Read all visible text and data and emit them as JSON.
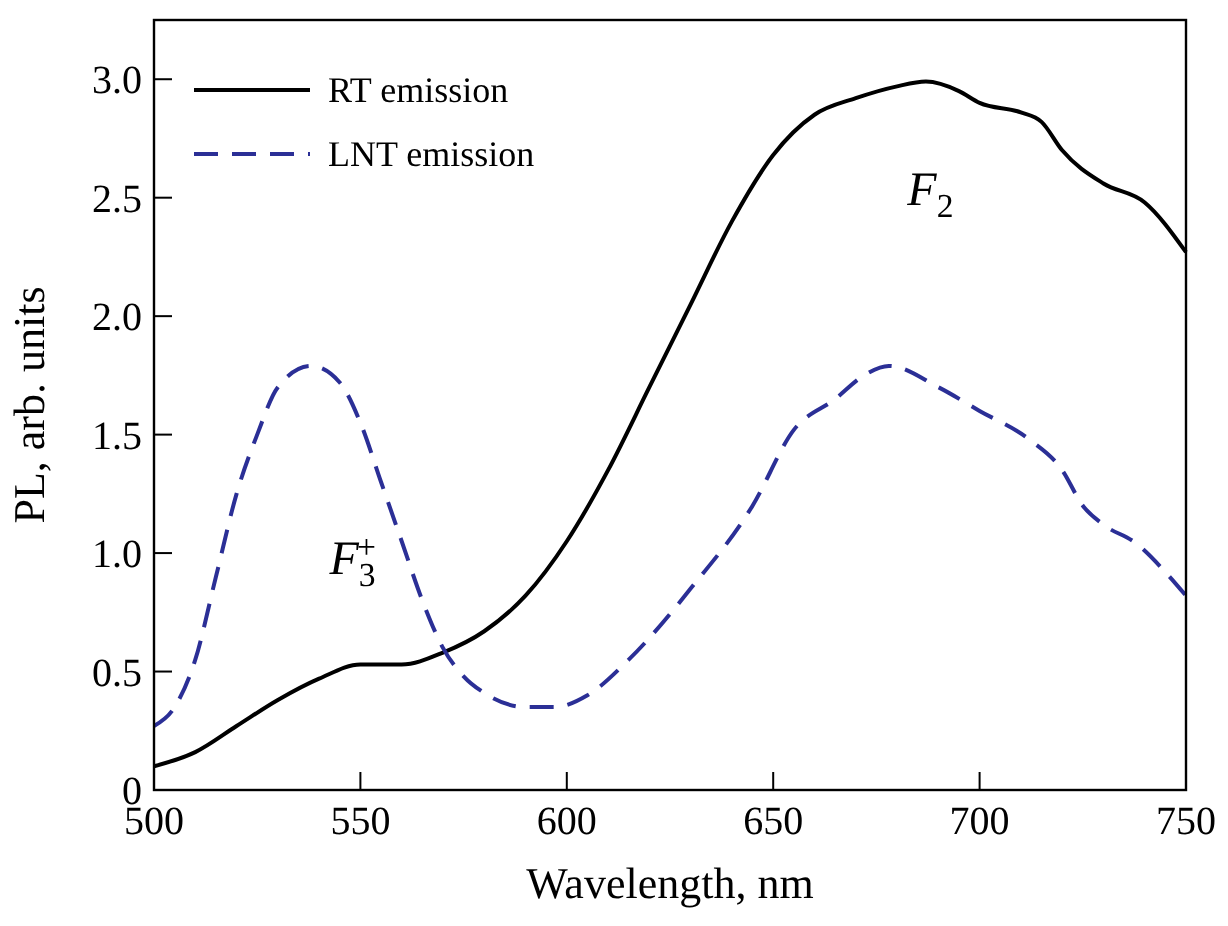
{
  "chart_data": {
    "type": "line",
    "xlabel": "Wavelength, nm",
    "ylabel": "PL, arb. units",
    "xlim": [
      500,
      750
    ],
    "ylim": [
      0,
      3.25
    ],
    "xticks": [
      500,
      550,
      600,
      650,
      700,
      750
    ],
    "yticks": [
      0,
      {
        "value": 0.5,
        "label": "0.5"
      },
      {
        "value": 1,
        "label": "1.0"
      },
      {
        "value": 1.5,
        "label": "1.5"
      },
      {
        "value": 2,
        "label": "2.0"
      },
      {
        "value": 2.5,
        "label": "2.5"
      },
      {
        "value": 3,
        "label": "3.0"
      }
    ],
    "legend": "top left",
    "marker": "none",
    "series": [
      {
        "name": "RT emission",
        "color": "#000000",
        "line_style": "solid",
        "x": [
          500,
          510,
          520,
          530,
          540,
          550,
          560,
          570,
          580,
          590,
          600,
          610,
          620,
          630,
          640,
          650,
          660,
          670,
          680,
          687,
          695,
          700,
          710,
          715,
          720,
          730,
          740,
          750
        ],
        "values": [
          0.1,
          0.16,
          0.27,
          0.38,
          0.47,
          0.53,
          0.53,
          0.58,
          0.67,
          0.82,
          1.05,
          1.35,
          1.7,
          2.05,
          2.4,
          2.68,
          2.85,
          2.92,
          2.97,
          2.99,
          2.95,
          2.9,
          2.86,
          2.82,
          2.7,
          2.56,
          2.48,
          2.27
        ]
      },
      {
        "name": "LNT emission",
        "color": "#2b2f96",
        "line_style": "dashed",
        "x": [
          500,
          505,
          510,
          515,
          520,
          525,
          530,
          538,
          545,
          550,
          555,
          560,
          565,
          570,
          575,
          580,
          590,
          597,
          605,
          615,
          630,
          645,
          655,
          665,
          672,
          678,
          690,
          700,
          712,
          720,
          725,
          730,
          738,
          745,
          750
        ],
        "values": [
          0.27,
          0.35,
          0.55,
          0.9,
          1.25,
          1.5,
          1.7,
          1.79,
          1.72,
          1.55,
          1.3,
          1.05,
          0.8,
          0.6,
          0.48,
          0.41,
          0.35,
          0.35,
          0.4,
          0.55,
          0.85,
          1.2,
          1.52,
          1.65,
          1.75,
          1.79,
          1.7,
          1.6,
          1.48,
          1.35,
          1.2,
          1.12,
          1.04,
          0.92,
          0.82
        ]
      }
    ],
    "annotations": [
      "F$_{3}$$^{+}$",
      "F$_{2}$"
    ]
  }
}
